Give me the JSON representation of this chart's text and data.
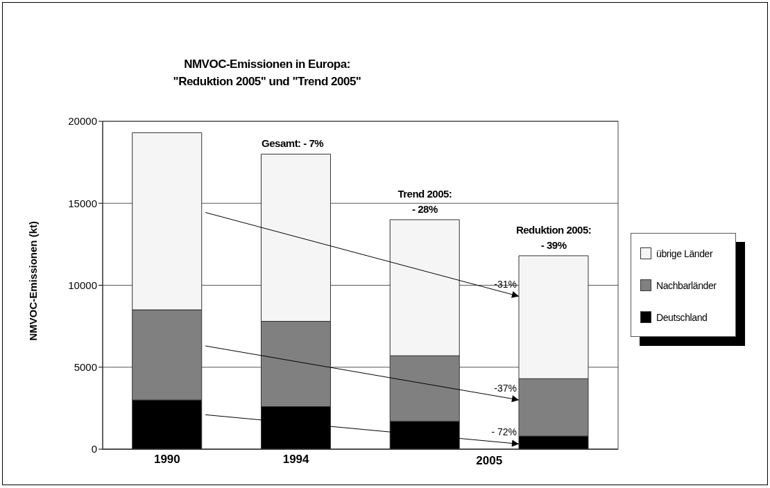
{
  "chart_data": {
    "type": "bar",
    "title": "NMVOC-Emissionen in Europa:\n\"Reduktion 2005\" und \"Trend 2005\"",
    "ylabel": "NMVOC-Emissionen (kt)",
    "categories": [
      "1990",
      "1994",
      null,
      null
    ],
    "stacked": true,
    "series": [
      {
        "name": "Deutschland",
        "color": "#000000",
        "values": [
          3000,
          2600,
          1700,
          800
        ]
      },
      {
        "name": "Nachbarländer",
        "color": "#808080",
        "values": [
          5500,
          5200,
          4000,
          3500
        ]
      },
      {
        "name": "übrige Länder",
        "color": "#f5f5f5",
        "values": [
          10800,
          10200,
          8300,
          7500
        ]
      }
    ],
    "ylim": [
      0,
      20000
    ],
    "yticks": [
      0,
      5000,
      10000,
      15000,
      20000
    ],
    "grid": "y",
    "legend": "right",
    "annotations": [
      "Gesamt: - 7%",
      "Trend 2005:\n- 28%",
      "Reduktion 2005:\n- 39%",
      "-31%",
      "-37%",
      "- 72%",
      "2005"
    ]
  }
}
